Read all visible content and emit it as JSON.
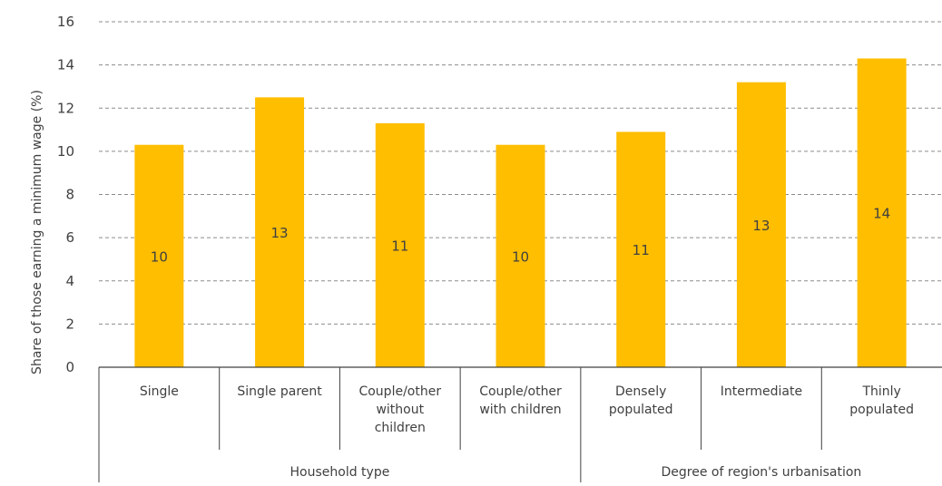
{
  "chart_data": {
    "type": "bar",
    "ylabel": "Share of those earning a minimum wage (%)",
    "xlabel": "",
    "ylim": [
      0,
      16
    ],
    "yticks": [
      0,
      2,
      4,
      6,
      8,
      10,
      12,
      14,
      16
    ],
    "grid": true,
    "legend": "none",
    "bar_color": "#FFBE00",
    "categories": [
      [
        "Single"
      ],
      [
        "Single parent"
      ],
      [
        "Couple/other",
        "without",
        "children"
      ],
      [
        "Couple/other",
        "with children"
      ],
      [
        "Densely",
        "populated"
      ],
      [
        "Intermediate"
      ],
      [
        "Thinly",
        "populated"
      ]
    ],
    "values": [
      10.3,
      12.5,
      11.3,
      10.3,
      10.9,
      13.2,
      14.3
    ],
    "data_labels": [
      "10",
      "13",
      "11",
      "10",
      "11",
      "13",
      "14"
    ],
    "groups": [
      {
        "label": "Household type",
        "count": 4
      },
      {
        "label": "Degree of region's urbanisation",
        "count": 3
      }
    ]
  }
}
